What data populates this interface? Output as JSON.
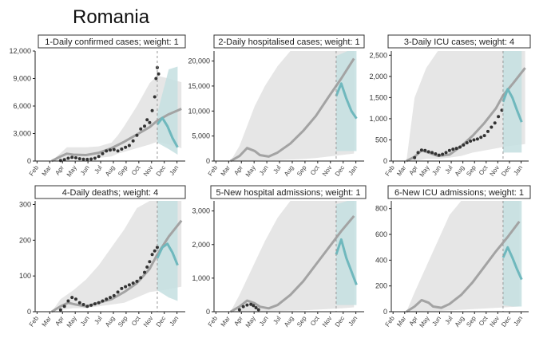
{
  "page_title": "Romania",
  "colors": {
    "model_line": "#a3a3a3",
    "model_band": "#e6e6e6",
    "projection_line": "#6fb8bd",
    "projection_band": "#c4dfe0",
    "observed_points": "#333333",
    "vline": "#999999"
  },
  "x_ticks": [
    "Feb",
    "Mar",
    "Apr",
    "May",
    "Jun",
    "Jul",
    "Aug",
    "Sep",
    "Oct",
    "Nov",
    "Dec",
    "Jan"
  ],
  "chart_data": [
    {
      "type": "line",
      "title": "1-Daily confirmed cases; weight: 1",
      "ylim": [
        0,
        12000
      ],
      "y_ticks": [
        0,
        3000,
        6000,
        9000,
        12000
      ],
      "y_tick_labels": [
        "0",
        "3,000",
        "6,000",
        "9,000",
        "12,000"
      ],
      "xlim": [
        0,
        11.8
      ],
      "grid": false,
      "vline_x": 9.6,
      "model_line": {
        "x": [
          1.3,
          2,
          2.5,
          3,
          4,
          5,
          6,
          7,
          8,
          9,
          9.6,
          10.5,
          11.5
        ],
        "y": [
          0,
          500,
          800,
          700,
          650,
          900,
          1400,
          2100,
          2900,
          3700,
          4400,
          5100,
          5700
        ]
      },
      "model_band": {
        "x": [
          1.3,
          2.5,
          3,
          4,
          5,
          6,
          6.5,
          7,
          8,
          9,
          9.6,
          10.5,
          11.5
        ],
        "lower": [
          0,
          100,
          200,
          300,
          350,
          500,
          800,
          1000,
          1400,
          1800,
          2100,
          1800,
          1400
        ],
        "upper": [
          0,
          1500,
          1500,
          1500,
          1600,
          2000,
          2800,
          3800,
          6000,
          8500,
          9300,
          9000,
          8600
        ]
      },
      "projection_line": {
        "x": [
          9.6,
          10.0,
          10.4,
          10.8,
          11.2
        ],
        "y": [
          4000,
          4700,
          3800,
          2500,
          1500
        ]
      },
      "projection_band": {
        "x": [
          9.6,
          10.5,
          11.2
        ],
        "lower": [
          2000,
          1300,
          700
        ],
        "upper": [
          5200,
          10000,
          10300
        ]
      },
      "observed": {
        "x": [
          2.0,
          2.3,
          2.6,
          2.9,
          3.2,
          3.5,
          3.8,
          4.1,
          4.4,
          4.7,
          5.0,
          5.3,
          5.6,
          5.9,
          6.2,
          6.5,
          6.8,
          7.1,
          7.4,
          7.7,
          8.0,
          8.3,
          8.6,
          8.8,
          9.0,
          9.2,
          9.4,
          9.5,
          9.6,
          9.7
        ],
        "y": [
          50,
          150,
          300,
          400,
          350,
          250,
          200,
          180,
          220,
          300,
          500,
          800,
          1100,
          1200,
          1250,
          1100,
          1300,
          1500,
          1700,
          2200,
          2800,
          3500,
          3800,
          4500,
          4200,
          5500,
          7000,
          9000,
          10200,
          9500
        ]
      }
    },
    {
      "type": "line",
      "title": "2-Daily hospitalised cases; weight: 1",
      "ylim": [
        0,
        22000
      ],
      "y_ticks": [
        0,
        5000,
        10000,
        15000,
        20000
      ],
      "y_tick_labels": [
        "0",
        "5,000",
        "10,000",
        "15,000",
        "20,000"
      ],
      "xlim": [
        0,
        11.8
      ],
      "grid": false,
      "vline_x": 9.6,
      "model_line": {
        "x": [
          1.3,
          2,
          2.6,
          3.2,
          3.6,
          4.3,
          5,
          6,
          7,
          8,
          9,
          10,
          11
        ],
        "y": [
          0,
          1000,
          2600,
          2000,
          1200,
          900,
          1700,
          3500,
          6000,
          9000,
          12800,
          16500,
          20500
        ]
      },
      "model_band": {
        "x": [
          1.3,
          2,
          2.6,
          3.2,
          4,
          5,
          6,
          7,
          8,
          9,
          10,
          11
        ],
        "lower": [
          0,
          0,
          100,
          100,
          150,
          200,
          300,
          400,
          600,
          900,
          1200,
          1500
        ],
        "upper": [
          0,
          3000,
          7000,
          11000,
          15000,
          19000,
          22000,
          22000,
          22000,
          22000,
          22000,
          22000
        ]
      },
      "projection_line": {
        "x": [
          9.6,
          10.0,
          10.4,
          10.8,
          11.2
        ],
        "y": [
          13000,
          15500,
          12500,
          10000,
          8500
        ]
      },
      "projection_band": {
        "x": [
          9.6,
          10.5,
          11.2
        ],
        "lower": [
          2000,
          2000,
          2000
        ],
        "upper": [
          21000,
          22000,
          22000
        ]
      },
      "observed": {
        "x": [],
        "y": []
      }
    },
    {
      "type": "line",
      "title": "3-Daily ICU cases; weight: 4",
      "ylim": [
        0,
        2600
      ],
      "y_ticks": [
        0,
        500,
        1000,
        1500,
        2000,
        2500
      ],
      "y_tick_labels": [
        "0",
        "500",
        "1,000",
        "1,500",
        "2,000",
        "2,500"
      ],
      "xlim": [
        0,
        11.8
      ],
      "grid": false,
      "vline_x": 9.6,
      "model_line": {
        "x": [
          1.3,
          2,
          2.6,
          3.2,
          4,
          5,
          6,
          7,
          8,
          9,
          9.6,
          10.5,
          11.5
        ],
        "y": [
          0,
          100,
          250,
          200,
          120,
          150,
          350,
          600,
          900,
          1250,
          1550,
          1850,
          2200
        ]
      },
      "model_band": {
        "x": [
          1.3,
          2,
          3,
          4,
          5,
          6,
          7,
          8,
          9,
          10,
          11.5
        ],
        "lower": [
          0,
          0,
          50,
          50,
          80,
          120,
          200,
          250,
          300,
          350,
          400
        ],
        "upper": [
          0,
          1500,
          2200,
          2600,
          2600,
          2600,
          2600,
          2600,
          2600,
          2600,
          2600
        ]
      },
      "projection_line": {
        "x": [
          9.6,
          10.0,
          10.4,
          10.8,
          11.2
        ],
        "y": [
          1400,
          1700,
          1500,
          1200,
          920
        ]
      },
      "projection_band": {
        "x": [
          9.6,
          10.5,
          11.2
        ],
        "lower": [
          200,
          200,
          200
        ],
        "upper": [
          2600,
          2600,
          2600
        ]
      },
      "observed": {
        "x": [
          2.0,
          2.3,
          2.6,
          2.9,
          3.2,
          3.5,
          3.8,
          4.1,
          4.4,
          4.7,
          5.0,
          5.3,
          5.6,
          5.9,
          6.2,
          6.5,
          6.8,
          7.1,
          7.4,
          7.7,
          8.0,
          8.3,
          8.6,
          8.9,
          9.2,
          9.5
        ],
        "y": [
          80,
          200,
          260,
          250,
          220,
          200,
          170,
          140,
          160,
          200,
          250,
          280,
          300,
          330,
          380,
          430,
          470,
          500,
          520,
          560,
          600,
          700,
          800,
          900,
          1050,
          1200
        ]
      }
    },
    {
      "type": "line",
      "title": "4-Daily deaths; weight: 4",
      "ylim": [
        0,
        310
      ],
      "y_ticks": [
        0,
        100,
        200,
        300
      ],
      "y_tick_labels": [
        "0",
        "100",
        "200",
        "300"
      ],
      "xlim": [
        0,
        11.8
      ],
      "grid": false,
      "vline_x": 9.6,
      "model_line": {
        "x": [
          1.3,
          2,
          2.6,
          3.2,
          4,
          5,
          6,
          7,
          8,
          9,
          9.6,
          10.5,
          11.5
        ],
        "y": [
          0,
          15,
          25,
          20,
          15,
          25,
          35,
          55,
          80,
          120,
          160,
          210,
          255
        ]
      },
      "model_band": {
        "x": [
          1.3,
          2,
          3,
          4,
          5,
          6,
          7,
          8,
          9,
          10,
          11.5
        ],
        "lower": [
          0,
          5,
          10,
          10,
          15,
          20,
          25,
          40,
          55,
          60,
          70
        ],
        "upper": [
          0,
          35,
          60,
          90,
          130,
          180,
          230,
          290,
          310,
          310,
          310
        ]
      },
      "projection_line": {
        "x": [
          9.6,
          10.0,
          10.4,
          10.8,
          11.2
        ],
        "y": [
          150,
          180,
          190,
          165,
          130
        ]
      },
      "projection_band": {
        "x": [
          9.6,
          10.5,
          11.2
        ],
        "lower": [
          60,
          40,
          30
        ],
        "upper": [
          310,
          310,
          310
        ]
      },
      "observed": {
        "x": [
          2.0,
          2.3,
          2.6,
          2.9,
          3.2,
          3.5,
          3.8,
          4.1,
          4.4,
          4.7,
          5.0,
          5.3,
          5.6,
          5.9,
          6.2,
          6.5,
          6.8,
          7.1,
          7.4,
          7.7,
          8.0,
          8.3,
          8.6,
          8.8,
          9.0,
          9.2,
          9.4,
          9.6
        ],
        "y": [
          5,
          15,
          30,
          40,
          35,
          25,
          20,
          15,
          18,
          22,
          25,
          30,
          35,
          40,
          45,
          55,
          65,
          70,
          75,
          80,
          85,
          95,
          110,
          125,
          140,
          160,
          170,
          180
        ]
      }
    },
    {
      "type": "line",
      "title": "5-New hospital admissions; weight: 1",
      "ylim": [
        0,
        3300
      ],
      "y_ticks": [
        0,
        1000,
        2000,
        3000
      ],
      "y_tick_labels": [
        "0",
        "1,000",
        "2,000",
        "3,000"
      ],
      "xlim": [
        0,
        11.8
      ],
      "grid": false,
      "vline_x": 9.6,
      "model_line": {
        "x": [
          1.3,
          2,
          2.6,
          3.2,
          3.6,
          4.3,
          5,
          6,
          7,
          8,
          9,
          10,
          11
        ],
        "y": [
          0,
          150,
          330,
          250,
          150,
          100,
          200,
          500,
          900,
          1400,
          1900,
          2400,
          2850
        ]
      },
      "model_band": {
        "x": [
          1.3,
          2,
          3,
          4,
          5,
          6,
          7,
          8,
          9,
          10,
          11
        ],
        "lower": [
          0,
          0,
          10,
          10,
          20,
          30,
          40,
          60,
          80,
          100,
          130
        ],
        "upper": [
          0,
          500,
          1300,
          2100,
          2800,
          3300,
          3300,
          3300,
          3300,
          3300,
          3300
        ]
      },
      "projection_line": {
        "x": [
          9.6,
          10.0,
          10.4,
          10.8,
          11.2
        ],
        "y": [
          1700,
          2150,
          1600,
          1200,
          800
        ]
      },
      "projection_band": {
        "x": [
          9.6,
          10.5,
          11.2
        ],
        "lower": [
          200,
          200,
          200
        ],
        "upper": [
          3200,
          3300,
          3300
        ]
      },
      "observed": {
        "x": [
          2.0,
          2.3,
          2.6,
          2.9,
          3.1,
          3.3,
          3.5
        ],
        "y": [
          60,
          150,
          200,
          220,
          180,
          120,
          60
        ]
      }
    },
    {
      "type": "line",
      "title": "6-New ICU admissions; weight: 1",
      "ylim": [
        0,
        860
      ],
      "y_ticks": [
        0,
        200,
        400,
        600,
        800
      ],
      "y_tick_labels": [
        "0",
        "200",
        "400",
        "600",
        "800"
      ],
      "xlim": [
        0,
        11.8
      ],
      "grid": false,
      "vline_x": 9.6,
      "model_line": {
        "x": [
          1.3,
          2,
          2.6,
          3.2,
          3.6,
          4.3,
          5,
          6,
          7,
          8,
          9,
          10,
          11
        ],
        "y": [
          0,
          40,
          90,
          70,
          40,
          30,
          60,
          130,
          230,
          350,
          470,
          580,
          700
        ]
      },
      "model_band": {
        "x": [
          1.3,
          2,
          3,
          4,
          5,
          6,
          7,
          8,
          9,
          10,
          11
        ],
        "lower": [
          0,
          0,
          5,
          5,
          10,
          15,
          20,
          25,
          30,
          35,
          40
        ],
        "upper": [
          0,
          150,
          350,
          550,
          750,
          860,
          860,
          860,
          860,
          860,
          860
        ]
      },
      "projection_line": {
        "x": [
          9.6,
          10.0,
          10.4,
          10.8,
          11.2
        ],
        "y": [
          420,
          500,
          420,
          330,
          250
        ]
      },
      "projection_band": {
        "x": [
          9.6,
          10.5,
          11.2
        ],
        "lower": [
          50,
          40,
          40
        ],
        "upper": [
          860,
          860,
          860
        ]
      },
      "observed": {
        "x": [],
        "y": []
      }
    }
  ]
}
